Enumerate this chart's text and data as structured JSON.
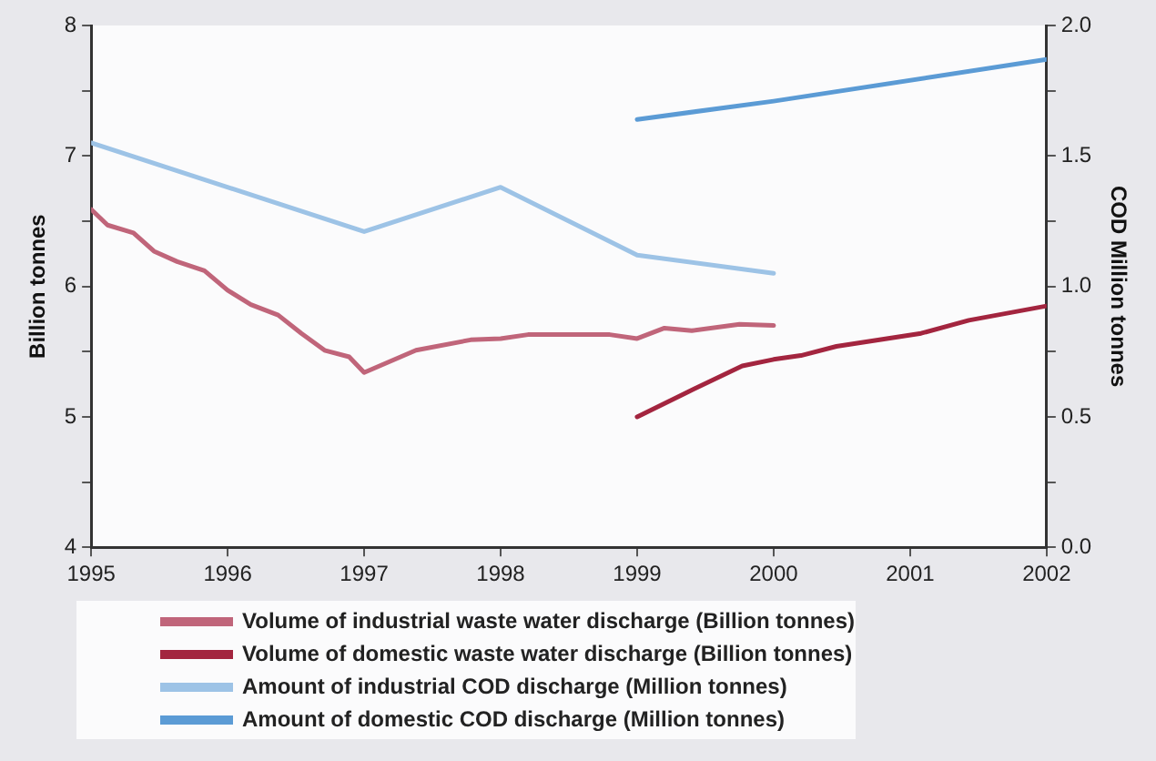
{
  "chart_data": {
    "type": "line",
    "ylabel": "Billion tonnes",
    "y2label": "COD Million tonnes",
    "xlim": [
      1995,
      2002
    ],
    "xticks": [
      1995,
      1996,
      1997,
      1998,
      1999,
      2000,
      2001,
      2002
    ],
    "ylim": [
      4,
      8
    ],
    "yticks": [
      4,
      {
        "value": 4.5,
        "label": null
      },
      5,
      {
        "value": 5.5,
        "label": null
      },
      6,
      {
        "value": 6.5,
        "label": null
      },
      7,
      {
        "value": 7.5,
        "label": null
      },
      8
    ],
    "y2lim": [
      0,
      2
    ],
    "y2ticks": [
      {
        "value": 0,
        "label": "0.0"
      },
      {
        "value": 0.25,
        "label": null
      },
      {
        "value": 0.5,
        "label": "0.5"
      },
      {
        "value": 0.75,
        "label": null
      },
      {
        "value": 1,
        "label": "1.0"
      },
      {
        "value": 1.25,
        "label": null
      },
      {
        "value": 1.5,
        "label": "1.5"
      },
      {
        "value": 1.75,
        "label": null
      },
      {
        "value": 2,
        "label": "2.0"
      }
    ],
    "grid": false,
    "legend": "bottom",
    "marker": "none",
    "line_style": "solid",
    "series": [
      {
        "name": "Volume of industrial waste water discharge (Billion tonnes)",
        "color": "#c0657a",
        "x": [
          1995,
          1995.12,
          1995.31,
          1995.46,
          1995.63,
          1995.83,
          1996,
          1996.17,
          1996.37,
          1996.54,
          1996.71,
          1996.89,
          1997,
          1997.38,
          1997.78,
          1998,
          1998.2,
          1998.8,
          1999,
          1999.2,
          1999.4,
          1999.75,
          2000
        ],
        "values": [
          6.59,
          6.47,
          6.41,
          6.27,
          6.19,
          6.12,
          5.97,
          5.86,
          5.78,
          5.64,
          5.51,
          5.46,
          5.34,
          5.51,
          5.59,
          5.6,
          5.63,
          5.63,
          5.6,
          5.68,
          5.66,
          5.71,
          5.7
        ]
      },
      {
        "name": "Volume of domestic waste water discharge (Billion tonnes)",
        "color": "#a3253f",
        "x": [
          1999,
          1999.37,
          1999.77,
          2000,
          2000.2,
          2000.46,
          2001.08,
          2001.43,
          2002
        ],
        "values": [
          5.0,
          5.19,
          5.39,
          5.44,
          5.47,
          5.54,
          5.64,
          5.74,
          5.85
        ]
      },
      {
        "name": "Amount of industrial COD discharge (Million tonnes)",
        "color": "#9dc3e6",
        "axis": "y2",
        "x": [
          1995,
          1997,
          1998,
          1999,
          2000
        ],
        "values": [
          1.55,
          1.21,
          1.38,
          1.12,
          1.05
        ]
      },
      {
        "name": "Amount of domestic COD discharge (Million tonnes)",
        "color": "#5b9bd5",
        "axis": "y2",
        "x": [
          1999,
          2000,
          2002
        ],
        "values": [
          1.64,
          1.71,
          1.87
        ]
      }
    ]
  }
}
